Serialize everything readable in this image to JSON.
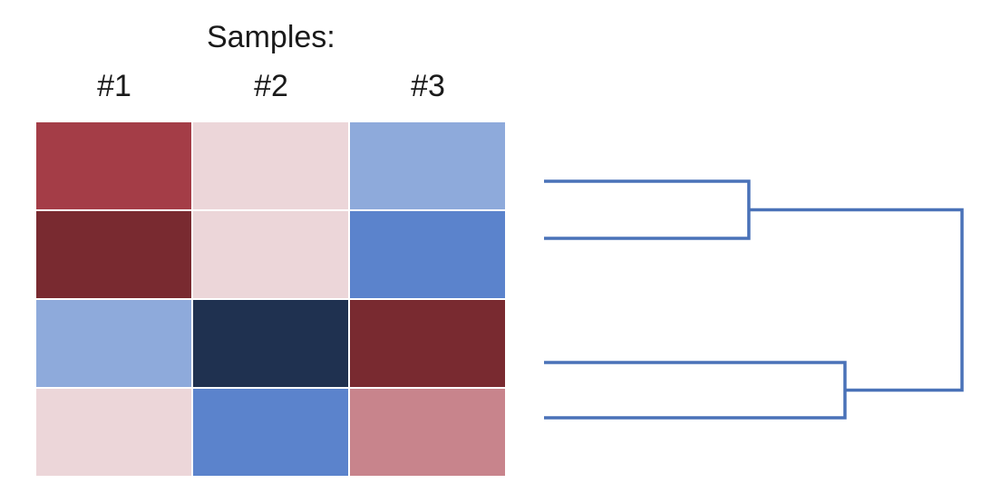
{
  "chart_data": {
    "type": "heatmap",
    "title": "Samples:",
    "columns": [
      "#1",
      "#2",
      "#3"
    ],
    "cells": [
      [
        "#a43d47",
        "#ecd6d9",
        "#8eaadb"
      ],
      [
        "#792a30",
        "#ecd6d9",
        "#5b83cc"
      ],
      [
        "#8eaadb",
        "#1f3150",
        "#792a30"
      ],
      [
        "#ecd6d9",
        "#5b83cc",
        "#c8848c"
      ]
    ],
    "dendrogram": {
      "side": "right",
      "color": "#4a72b8",
      "merges": [
        {
          "rows": [
            0,
            1
          ],
          "height": 0.49
        },
        {
          "rows": [
            2,
            3
          ],
          "height": 0.72
        },
        {
          "clusters": [
            0,
            1
          ],
          "height": 1.0
        }
      ]
    },
    "grid_color": "#ffffff",
    "legend": "none"
  }
}
